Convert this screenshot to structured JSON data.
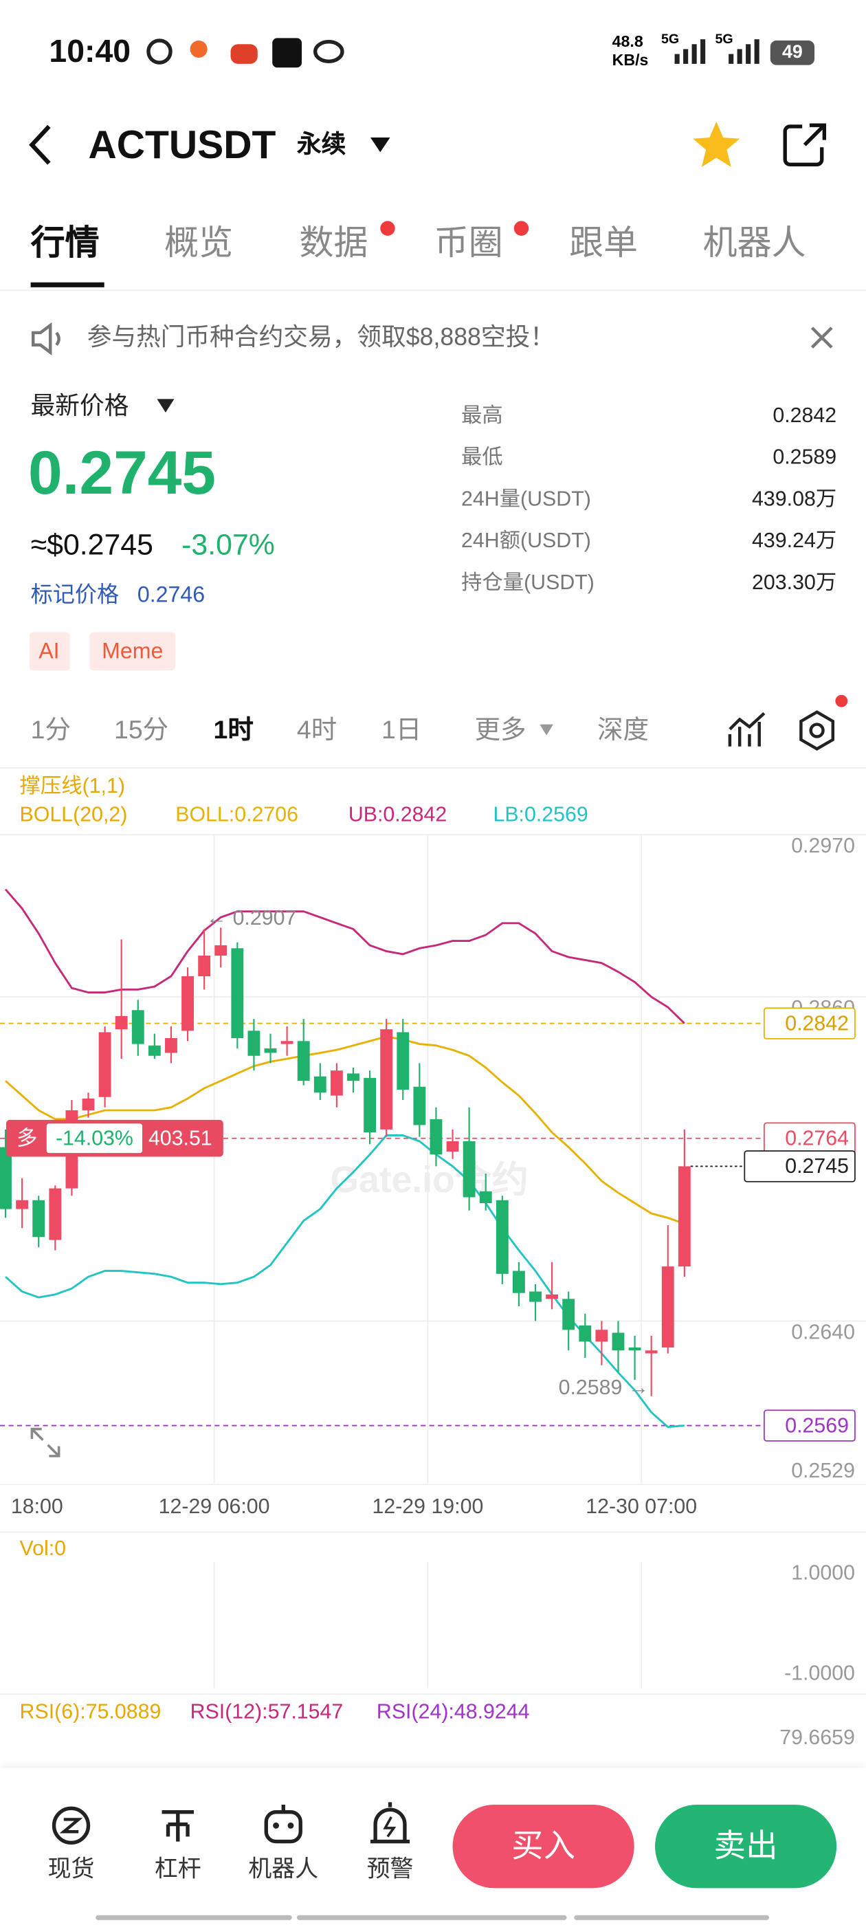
{
  "status_bar": {
    "time": "10:40",
    "speed_value": "48.8",
    "speed_unit": "KB/s",
    "net1": "5G",
    "net2": "5G",
    "battery": "49"
  },
  "header": {
    "symbol": "ACTUSDT",
    "contract": "永续"
  },
  "tabs": [
    "行情",
    "概览",
    "数据",
    "币圈",
    "跟单",
    "机器人"
  ],
  "banner": "参与热门币种合约交易，领取$8,888空投！",
  "price_info": {
    "label": "最新价格",
    "last": "0.2745",
    "usd": "≈$0.2745",
    "change": "-3.07%",
    "mark_label": "标记价格",
    "mark": "0.2746",
    "tags": [
      "AI",
      "Meme"
    ]
  },
  "stats": [
    {
      "label": "最高",
      "value": "0.2842"
    },
    {
      "label": "最低",
      "value": "0.2589"
    },
    {
      "label": "24H量(USDT)",
      "value": "439.08万"
    },
    {
      "label": "24H额(USDT)",
      "value": "439.24万"
    },
    {
      "label": "持仓量(USDT)",
      "value": "203.30万"
    }
  ],
  "intervals": [
    "1分",
    "15分",
    "1时",
    "4时",
    "1日",
    "更多",
    "深度"
  ],
  "chart_data": {
    "type": "candlestick",
    "overlay_label": "撑压线(1,1)",
    "indicator_label": "BOLL(20,2)",
    "up_color": "#ef4a64",
    "down_color": "#20b26c",
    "candles": {
      "open": [
        0.2758,
        0.2716,
        0.2722,
        0.2695,
        0.273,
        0.2783,
        0.2792,
        0.2838,
        0.2851,
        0.2827,
        0.2822,
        0.2837,
        0.2874,
        0.2888,
        0.2893,
        0.2837,
        0.2825,
        0.2828,
        0.283,
        0.2806,
        0.2793,
        0.2808,
        0.2805,
        0.277,
        0.2836,
        0.2799,
        0.2777,
        0.2755,
        0.2762,
        0.2728,
        0.2722,
        0.2674,
        0.266,
        0.2655,
        0.2655,
        0.2637,
        0.2626,
        0.2632,
        0.2622,
        0.2618,
        0.2622,
        0.2677
      ],
      "high": [
        0.277,
        0.2737,
        0.2725,
        0.2732,
        0.279,
        0.2795,
        0.284,
        0.2899,
        0.2858,
        0.2835,
        0.284,
        0.288,
        0.2906,
        0.2907,
        0.2897,
        0.2845,
        0.2835,
        0.284,
        0.2845,
        0.2815,
        0.2815,
        0.2812,
        0.281,
        0.2845,
        0.2845,
        0.2815,
        0.2785,
        0.277,
        0.2785,
        0.274,
        0.2725,
        0.268,
        0.2665,
        0.268,
        0.266,
        0.2645,
        0.264,
        0.264,
        0.263,
        0.263,
        0.2705,
        0.277
      ],
      "low": [
        0.271,
        0.2703,
        0.269,
        0.2688,
        0.2725,
        0.2778,
        0.2785,
        0.2818,
        0.282,
        0.2818,
        0.2815,
        0.283,
        0.2865,
        0.288,
        0.2825,
        0.281,
        0.2815,
        0.282,
        0.28,
        0.279,
        0.2785,
        0.2795,
        0.276,
        0.2765,
        0.279,
        0.2765,
        0.2745,
        0.275,
        0.2715,
        0.2715,
        0.2665,
        0.265,
        0.264,
        0.2648,
        0.262,
        0.2615,
        0.261,
        0.2605,
        0.26,
        0.2589,
        0.2618,
        0.267
      ],
      "close": [
        0.2716,
        0.2722,
        0.2697,
        0.273,
        0.2783,
        0.2791,
        0.2836,
        0.2847,
        0.2828,
        0.282,
        0.2832,
        0.2874,
        0.2888,
        0.2895,
        0.2832,
        0.282,
        0.2822,
        0.283,
        0.2803,
        0.2795,
        0.281,
        0.2803,
        0.2768,
        0.2838,
        0.2797,
        0.2773,
        0.2753,
        0.2762,
        0.2724,
        0.272,
        0.2672,
        0.2659,
        0.2653,
        0.2658,
        0.2634,
        0.2626,
        0.2634,
        0.262,
        0.262,
        0.262,
        0.2677,
        0.2745
      ]
    },
    "series": [
      {
        "name": "BOLL:0.2706",
        "color": "#e8b000",
        "values": [
          0.2803,
          0.2793,
          0.2783,
          0.2777,
          0.2777,
          0.278,
          0.2783,
          0.2783,
          0.2783,
          0.2783,
          0.2785,
          0.2791,
          0.2798,
          0.2803,
          0.2808,
          0.2813,
          0.2816,
          0.2818,
          0.282,
          0.2822,
          0.2824,
          0.2827,
          0.283,
          0.2833,
          0.2831,
          0.2828,
          0.2827,
          0.2824,
          0.282,
          0.2812,
          0.2802,
          0.2793,
          0.2781,
          0.2768,
          0.2758,
          0.2747,
          0.2735,
          0.2727,
          0.272,
          0.2713,
          0.271,
          0.2706
        ]
      },
      {
        "name": "UB:0.2842",
        "color": "#c8287a",
        "values": [
          0.2933,
          0.292,
          0.2903,
          0.2883,
          0.2866,
          0.2863,
          0.2863,
          0.2865,
          0.2865,
          0.2867,
          0.2874,
          0.2891,
          0.2905,
          0.2914,
          0.2918,
          0.2918,
          0.2918,
          0.2918,
          0.2918,
          0.2914,
          0.291,
          0.2906,
          0.2895,
          0.2891,
          0.2889,
          0.2893,
          0.2895,
          0.2898,
          0.2898,
          0.2902,
          0.291,
          0.291,
          0.2903,
          0.2891,
          0.2887,
          0.2885,
          0.2883,
          0.2877,
          0.287,
          0.286,
          0.2853,
          0.2842
        ]
      },
      {
        "name": "LB:0.2569",
        "color": "#22c3c3",
        "values": [
          0.267,
          0.266,
          0.2656,
          0.2658,
          0.2662,
          0.267,
          0.2674,
          0.2674,
          0.2673,
          0.2672,
          0.267,
          0.2666,
          0.2666,
          0.2665,
          0.2666,
          0.267,
          0.2678,
          0.2693,
          0.2708,
          0.2716,
          0.273,
          0.2741,
          0.2753,
          0.2766,
          0.2766,
          0.2762,
          0.2753,
          0.2745,
          0.2735,
          0.272,
          0.2703,
          0.2688,
          0.2674,
          0.2658,
          0.2643,
          0.263,
          0.2618,
          0.2605,
          0.2593,
          0.2578,
          0.2568,
          0.2569
        ]
      }
    ],
    "ylim": [
      0.253,
      0.297
    ],
    "yticks": [
      {
        "value": 0.297,
        "label": "0.2970"
      },
      {
        "value": 0.286,
        "label": "0.2860"
      },
      {
        "value": 0.264,
        "label": "0.2640"
      },
      0.2529
    ],
    "xlim": [
      -0.333,
      51.963
    ],
    "xticks": [
      {
        "value": 1.9,
        "label": "18:00"
      },
      {
        "value": 12.6,
        "label": "12-29 06:00"
      },
      {
        "value": 25.5,
        "label": "12-29 19:00"
      },
      {
        "value": 38.4,
        "label": "12-30 07:00"
      }
    ],
    "grid": true,
    "price_lines": [
      {
        "value": 0.2842,
        "color": "#e8b000",
        "style": "dashed"
      },
      {
        "value": 0.2764,
        "color": "#ef4a64",
        "style": "dashed"
      },
      {
        "value": 0.2745,
        "color": "#222222",
        "style": "dotted"
      },
      {
        "value": 0.2569,
        "color": "#a034c8",
        "style": "dashed"
      }
    ],
    "position": {
      "side": "多",
      "pnl": "-14.03%",
      "size": "403.51",
      "price": 0.2764
    },
    "high_label": "← 0.2907",
    "low_label": "0.2589 →",
    "watermark": "Gate.io合约"
  },
  "volume": {
    "label": "Vol:0",
    "ylim": [
      -1,
      1
    ],
    "yticks": [
      {
        "value": 1,
        "label": "1.0000"
      },
      {
        "value": -1,
        "label": "-1.0000"
      }
    ]
  },
  "rsi": {
    "labels": [
      {
        "text": "RSI(6):75.0889",
        "color": "#e8a800"
      },
      {
        "text": "RSI(12):57.1547",
        "color": "#c8287a"
      },
      {
        "text": "RSI(24):48.9244",
        "color": "#a034c8"
      }
    ],
    "top_tick": "79.6659"
  },
  "bottom_nav": {
    "items": [
      "现货",
      "杠杆",
      "机器人",
      "预警"
    ],
    "buy": "买入",
    "sell": "卖出"
  }
}
